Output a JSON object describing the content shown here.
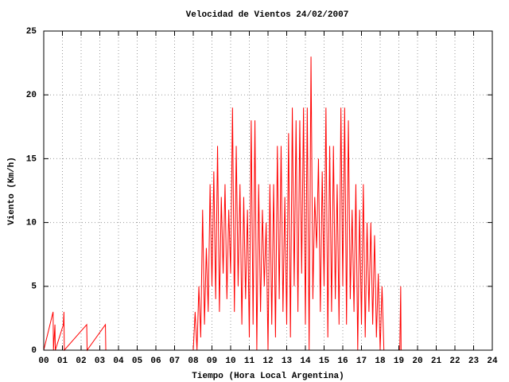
{
  "chart_data": {
    "type": "line",
    "title": "Velocidad de Vientos 24/02/2007",
    "xlabel": "Tiempo (Hora Local Argentina)",
    "ylabel": "Viento (Km/h)",
    "color": "#ff0000",
    "grid": true,
    "xlim": [
      0,
      24
    ],
    "ylim": [
      0,
      25
    ],
    "yticks": [
      0,
      5,
      10,
      15,
      20,
      25
    ],
    "xticks": [
      {
        "value": 0,
        "label": "00"
      },
      {
        "value": 1,
        "label": "01"
      },
      {
        "value": 2,
        "label": "02"
      },
      {
        "value": 3,
        "label": "03"
      },
      {
        "value": 4,
        "label": "04"
      },
      {
        "value": 5,
        "label": "05"
      },
      {
        "value": 6,
        "label": "06"
      },
      {
        "value": 7,
        "label": "07"
      },
      {
        "value": 8,
        "label": "08"
      },
      {
        "value": 9,
        "label": "09"
      },
      {
        "value": 10,
        "label": "10"
      },
      {
        "value": 11,
        "label": "11"
      },
      {
        "value": 12,
        "label": "12"
      },
      {
        "value": 13,
        "label": "13"
      },
      {
        "value": 14,
        "label": "14"
      },
      {
        "value": 15,
        "label": "15"
      },
      {
        "value": 16,
        "label": "16"
      },
      {
        "value": 17,
        "label": "17"
      },
      {
        "value": 18,
        "label": "18"
      },
      {
        "value": 19,
        "label": "19"
      },
      {
        "value": 20,
        "label": "20"
      },
      {
        "value": 21,
        "label": "21"
      },
      {
        "value": 22,
        "label": "22"
      },
      {
        "value": 23,
        "label": "23"
      },
      {
        "value": 24,
        "label": "24"
      }
    ],
    "x": [
      0,
      0.5,
      0.52,
      0.6,
      0.62,
      1.05,
      1.08,
      1.1,
      2.3,
      2.32,
      3.3,
      3.32,
      8.0,
      8.1,
      8.2,
      8.3,
      8.4,
      8.5,
      8.6,
      8.7,
      8.8,
      8.9,
      9.0,
      9.1,
      9.2,
      9.3,
      9.4,
      9.5,
      9.6,
      9.7,
      9.8,
      9.9,
      10.0,
      10.1,
      10.2,
      10.3,
      10.4,
      10.5,
      10.6,
      10.7,
      10.8,
      10.9,
      11.0,
      11.1,
      11.2,
      11.3,
      11.4,
      11.5,
      11.6,
      11.7,
      11.8,
      11.9,
      12.0,
      12.1,
      12.2,
      12.3,
      12.4,
      12.5,
      12.6,
      12.7,
      12.8,
      12.9,
      13.0,
      13.1,
      13.2,
      13.3,
      13.4,
      13.5,
      13.6,
      13.7,
      13.8,
      13.9,
      14.0,
      14.1,
      14.2,
      14.3,
      14.4,
      14.5,
      14.6,
      14.7,
      14.8,
      14.9,
      15.0,
      15.1,
      15.2,
      15.3,
      15.4,
      15.5,
      15.6,
      15.7,
      15.8,
      15.9,
      16.0,
      16.1,
      16.2,
      16.3,
      16.4,
      16.5,
      16.6,
      16.7,
      16.8,
      16.9,
      17.0,
      17.1,
      17.2,
      17.3,
      17.4,
      17.5,
      17.6,
      17.7,
      17.8,
      17.9,
      18.0,
      18.1,
      18.2,
      19.05,
      19.1,
      19.12
    ],
    "values": [
      0,
      3,
      0,
      2,
      0,
      2,
      3,
      0,
      2,
      0,
      2,
      0,
      0,
      3,
      0,
      5,
      1,
      11,
      2,
      8,
      3,
      13,
      5,
      14,
      4,
      16,
      3,
      12,
      6,
      13,
      4,
      11,
      6,
      19,
      3,
      16,
      5,
      13,
      2,
      12,
      4,
      11,
      1,
      18,
      2,
      18,
      0,
      13,
      3,
      11,
      5,
      10,
      0,
      13,
      2,
      13,
      1,
      16,
      4,
      16,
      3,
      12,
      2,
      17,
      1,
      19,
      5,
      18,
      3,
      18,
      6,
      19,
      2,
      19,
      0,
      23,
      4,
      12,
      8,
      15,
      3,
      14,
      5,
      19,
      1,
      16,
      3,
      16,
      4,
      13,
      2,
      19,
      5,
      19,
      2,
      18,
      4,
      11,
      3,
      13,
      0,
      11,
      2,
      13,
      1,
      10,
      3,
      10,
      2,
      9,
      1,
      6,
      0,
      5,
      0,
      0,
      5,
      0
    ]
  }
}
